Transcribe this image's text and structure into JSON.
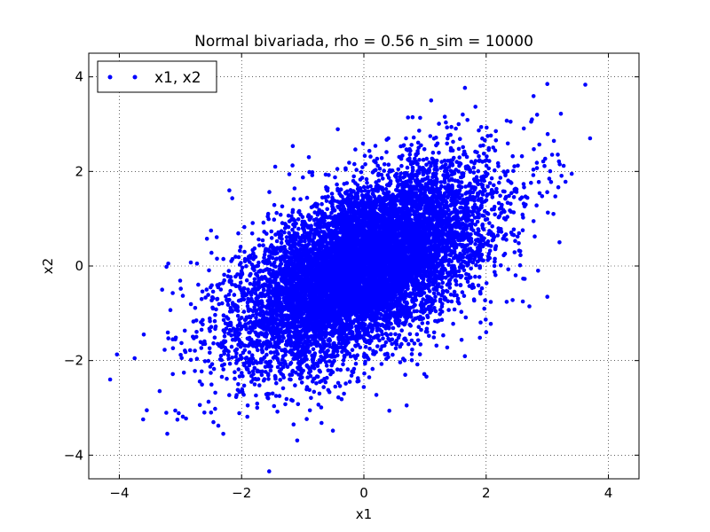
{
  "chart_data": {
    "type": "scatter",
    "title": "Normal bivariada, rho = 0.56 n_sim = 10000",
    "xlabel": "x1",
    "ylabel": "x2",
    "xlim": [
      -4.5,
      4.5
    ],
    "ylim": [
      -4.5,
      4.5
    ],
    "xticks": [
      -4,
      -2,
      0,
      2,
      4
    ],
    "yticks": [
      -4,
      -2,
      0,
      2,
      4
    ],
    "xtick_labels": [
      "−4",
      "−2",
      "0",
      "2",
      "4"
    ],
    "ytick_labels": [
      "−4",
      "−2",
      "0",
      "2",
      "4"
    ],
    "grid": true,
    "legend_position": "top-left",
    "series": [
      {
        "name": "x1, x2",
        "color": "#0000ff",
        "marker": "dot",
        "n": 10000,
        "rho": 0.56,
        "mean": [
          0,
          0
        ],
        "std": [
          1,
          1
        ],
        "sample_points": [
          [
            3.0,
            3.85
          ],
          [
            3.7,
            2.7
          ],
          [
            1.1,
            3.5
          ],
          [
            2.4,
            3.05
          ],
          [
            2.75,
            3.1
          ],
          [
            3.4,
            1.95
          ],
          [
            3.1,
            1.1
          ],
          [
            3.2,
            0.5
          ],
          [
            3.0,
            -0.65
          ],
          [
            2.6,
            -0.75
          ],
          [
            2.0,
            -1.4
          ],
          [
            -4.15,
            -2.4
          ],
          [
            -3.75,
            -1.95
          ],
          [
            -3.6,
            -1.45
          ],
          [
            -3.3,
            -0.5
          ],
          [
            -3.05,
            -3.25
          ],
          [
            -2.3,
            -3.55
          ],
          [
            -1.9,
            -2.95
          ],
          [
            -1.15,
            -3.35
          ],
          [
            0.7,
            -2.95
          ],
          [
            -2.2,
            1.6
          ],
          [
            -1.45,
            2.1
          ],
          [
            -2.5,
            0.75
          ],
          [
            0.4,
            2.7
          ],
          [
            -0.9,
            2.3
          ],
          [
            1.55,
            3.0
          ],
          [
            -3.55,
            -3.05
          ],
          [
            -2.5,
            -3.1
          ],
          [
            2.85,
            -0.1
          ],
          [
            -3.2,
            0.05
          ]
        ]
      }
    ]
  }
}
